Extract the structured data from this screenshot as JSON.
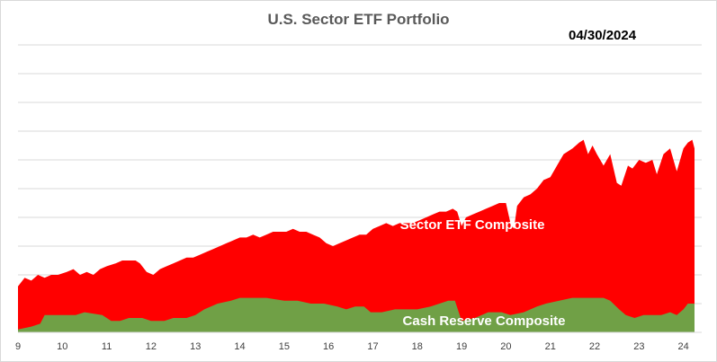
{
  "chart_data": {
    "type": "area",
    "title": "U.S. Sector ETF Portfolio",
    "date": "04/30/2024",
    "stacked": true,
    "grid": true,
    "ylim": [
      0,
      100
    ],
    "xlim": [
      9,
      24.25
    ],
    "x_ticks": [
      "9",
      "10",
      "11",
      "12",
      "13",
      "14",
      "15",
      "16",
      "17",
      "18",
      "19",
      "20",
      "21",
      "22",
      "23",
      "24"
    ],
    "colors": {
      "sector": "#ff0000",
      "cash": "#70a046",
      "grid": "#d9d9d9"
    },
    "series": [
      {
        "name": "Cash Reserve Composite",
        "key": "cash",
        "label": "Cash Reserve Composite",
        "points": [
          [
            9,
            1
          ],
          [
            9.3,
            2
          ],
          [
            9.5,
            3
          ],
          [
            9.6,
            6
          ],
          [
            10.0,
            6
          ],
          [
            10.3,
            6
          ],
          [
            10.5,
            7
          ],
          [
            10.9,
            6
          ],
          [
            11.1,
            4
          ],
          [
            11.3,
            4
          ],
          [
            11.5,
            5
          ],
          [
            11.8,
            5
          ],
          [
            12.0,
            4
          ],
          [
            12.3,
            4
          ],
          [
            12.5,
            5
          ],
          [
            12.8,
            5
          ],
          [
            13.0,
            6
          ],
          [
            13.2,
            8
          ],
          [
            13.5,
            10
          ],
          [
            13.8,
            11
          ],
          [
            14.0,
            12
          ],
          [
            14.3,
            12
          ],
          [
            14.6,
            12
          ],
          [
            15.0,
            11
          ],
          [
            15.3,
            11
          ],
          [
            15.6,
            10
          ],
          [
            15.9,
            10
          ],
          [
            16.2,
            9
          ],
          [
            16.4,
            8
          ],
          [
            16.6,
            9
          ],
          [
            16.8,
            9
          ],
          [
            16.95,
            7
          ],
          [
            17.2,
            7
          ],
          [
            17.5,
            8
          ],
          [
            17.8,
            8
          ],
          [
            18.0,
            8
          ],
          [
            18.3,
            9
          ],
          [
            18.5,
            10
          ],
          [
            18.7,
            11
          ],
          [
            18.85,
            11
          ],
          [
            19.0,
            4
          ],
          [
            19.3,
            5
          ],
          [
            19.6,
            7
          ],
          [
            19.9,
            7
          ],
          [
            20.1,
            6
          ],
          [
            20.4,
            7
          ],
          [
            20.7,
            9
          ],
          [
            20.9,
            10
          ],
          [
            21.2,
            11
          ],
          [
            21.5,
            12
          ],
          [
            21.8,
            12
          ],
          [
            22.0,
            12
          ],
          [
            22.2,
            12
          ],
          [
            22.35,
            11
          ],
          [
            22.55,
            8
          ],
          [
            22.7,
            6
          ],
          [
            22.9,
            5
          ],
          [
            23.1,
            6
          ],
          [
            23.3,
            6
          ],
          [
            23.5,
            6
          ],
          [
            23.7,
            7
          ],
          [
            23.85,
            6
          ],
          [
            24.0,
            8
          ],
          [
            24.1,
            10
          ],
          [
            24.25,
            10
          ]
        ]
      },
      {
        "name": "Sector ETF Composite",
        "key": "sector",
        "label": "Sector ETF Composite",
        "points": [
          [
            9,
            16
          ],
          [
            9.15,
            19
          ],
          [
            9.3,
            18
          ],
          [
            9.45,
            20
          ],
          [
            9.6,
            19
          ],
          [
            9.75,
            20
          ],
          [
            9.9,
            20
          ],
          [
            10.1,
            21
          ],
          [
            10.25,
            22
          ],
          [
            10.4,
            20
          ],
          [
            10.55,
            21
          ],
          [
            10.7,
            20
          ],
          [
            10.85,
            22
          ],
          [
            11.0,
            23
          ],
          [
            11.2,
            24
          ],
          [
            11.35,
            25
          ],
          [
            11.5,
            25
          ],
          [
            11.65,
            25
          ],
          [
            11.75,
            24
          ],
          [
            11.9,
            21
          ],
          [
            12.05,
            20
          ],
          [
            12.2,
            22
          ],
          [
            12.35,
            23
          ],
          [
            12.5,
            24
          ],
          [
            12.65,
            25
          ],
          [
            12.8,
            26
          ],
          [
            12.95,
            26
          ],
          [
            13.1,
            27
          ],
          [
            13.25,
            28
          ],
          [
            13.4,
            29
          ],
          [
            13.55,
            30
          ],
          [
            13.7,
            31
          ],
          [
            13.85,
            32
          ],
          [
            14.0,
            33
          ],
          [
            14.15,
            33
          ],
          [
            14.3,
            34
          ],
          [
            14.45,
            33
          ],
          [
            14.6,
            34
          ],
          [
            14.75,
            35
          ],
          [
            14.9,
            35
          ],
          [
            15.05,
            35
          ],
          [
            15.2,
            36
          ],
          [
            15.35,
            35
          ],
          [
            15.5,
            35
          ],
          [
            15.65,
            34
          ],
          [
            15.8,
            33
          ],
          [
            15.95,
            31
          ],
          [
            16.1,
            30
          ],
          [
            16.25,
            31
          ],
          [
            16.4,
            32
          ],
          [
            16.55,
            33
          ],
          [
            16.7,
            34
          ],
          [
            16.85,
            34
          ],
          [
            17.0,
            36
          ],
          [
            17.15,
            37
          ],
          [
            17.3,
            38
          ],
          [
            17.45,
            37
          ],
          [
            17.6,
            38
          ],
          [
            17.75,
            38
          ],
          [
            17.9,
            38
          ],
          [
            18.05,
            39
          ],
          [
            18.2,
            40
          ],
          [
            18.35,
            41
          ],
          [
            18.5,
            42
          ],
          [
            18.65,
            42
          ],
          [
            18.8,
            43
          ],
          [
            18.9,
            42
          ],
          [
            19.0,
            37
          ],
          [
            19.1,
            40
          ],
          [
            19.25,
            41
          ],
          [
            19.4,
            42
          ],
          [
            19.55,
            43
          ],
          [
            19.7,
            44
          ],
          [
            19.85,
            45
          ],
          [
            20.0,
            45
          ],
          [
            20.1,
            38
          ],
          [
            20.18,
            36
          ],
          [
            20.25,
            44
          ],
          [
            20.4,
            47
          ],
          [
            20.55,
            48
          ],
          [
            20.7,
            50
          ],
          [
            20.85,
            53
          ],
          [
            21.0,
            54
          ],
          [
            21.15,
            58
          ],
          [
            21.3,
            62
          ],
          [
            21.5,
            64
          ],
          [
            21.65,
            66
          ],
          [
            21.75,
            67
          ],
          [
            21.85,
            62
          ],
          [
            21.95,
            65
          ],
          [
            22.05,
            62
          ],
          [
            22.2,
            58
          ],
          [
            22.35,
            62
          ],
          [
            22.5,
            52
          ],
          [
            22.6,
            51
          ],
          [
            22.75,
            58
          ],
          [
            22.85,
            57
          ],
          [
            23.0,
            60
          ],
          [
            23.15,
            59
          ],
          [
            23.3,
            60
          ],
          [
            23.4,
            55
          ],
          [
            23.55,
            62
          ],
          [
            23.7,
            64
          ],
          [
            23.85,
            56
          ],
          [
            24.0,
            64
          ],
          [
            24.1,
            66
          ],
          [
            24.2,
            67
          ],
          [
            24.25,
            64
          ]
        ]
      }
    ]
  }
}
